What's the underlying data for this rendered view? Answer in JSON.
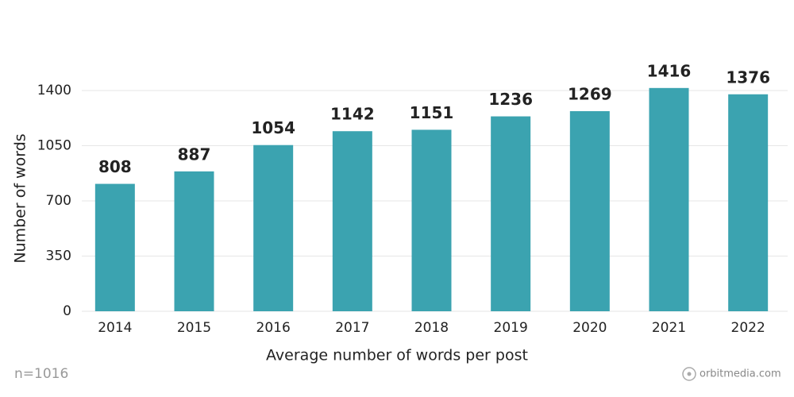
{
  "chart_data": {
    "type": "bar",
    "x_label": "Average number of words per post",
    "y_label": "Number of words",
    "note": "n=1016",
    "watermark": "orbitmedia.com",
    "categories": [
      "2014",
      "2015",
      "2016",
      "2017",
      "2018",
      "2019",
      "2020",
      "2021",
      "2022"
    ],
    "values": [
      808,
      887,
      1054,
      1142,
      1151,
      1236,
      1269,
      1416,
      1376
    ],
    "color": "#3ba3b0",
    "ylim": [
      0,
      1750
    ],
    "yticks": [
      0,
      350,
      700,
      1050,
      1400
    ],
    "grid": true
  }
}
